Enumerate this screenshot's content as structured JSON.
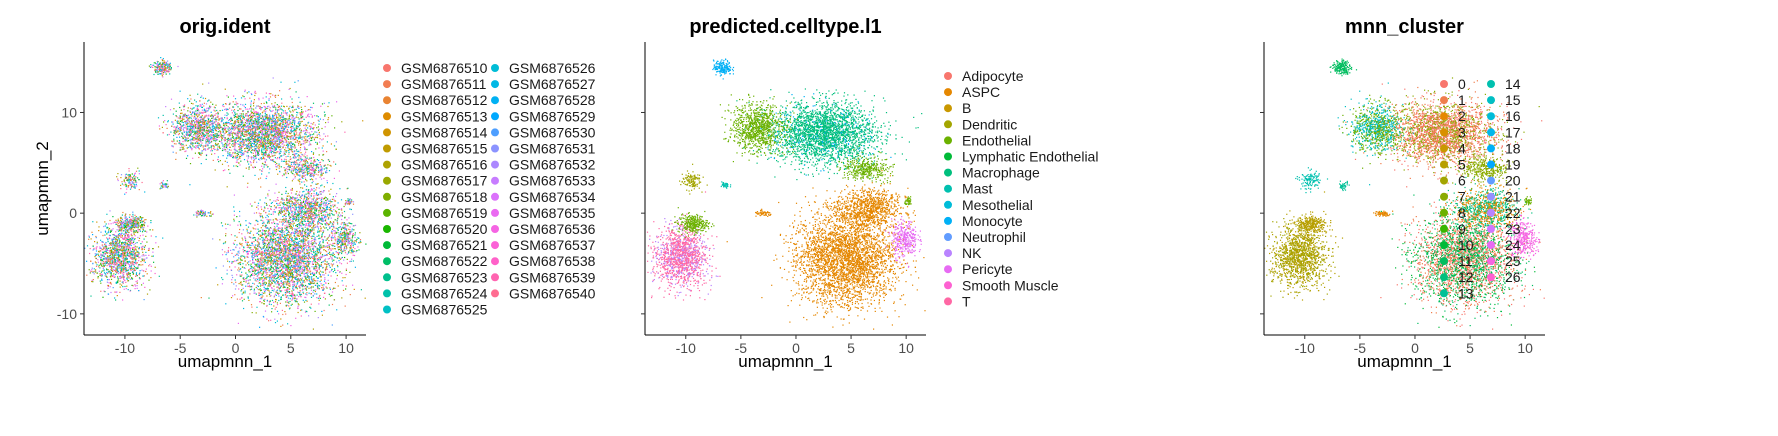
{
  "chart_data": [
    {
      "type": "scatter",
      "title": "orig.ident",
      "xlabel": "umapmnn_1",
      "ylabel": "umapmnn_2",
      "xlim": [
        -13.7,
        11.8
      ],
      "ylim": [
        -12.1,
        17.0
      ],
      "x_ticks": [
        -10,
        -5,
        0,
        5,
        10
      ],
      "y_ticks": [
        -10,
        0,
        10
      ],
      "grid": false,
      "legend_position": "right",
      "legend_columns": 2,
      "legend": [
        "GSM6876510",
        "GSM6876511",
        "GSM6876512",
        "GSM6876513",
        "GSM6876514",
        "GSM6876515",
        "GSM6876516",
        "GSM6876517",
        "GSM6876518",
        "GSM6876519",
        "GSM6876520",
        "GSM6876521",
        "GSM6876522",
        "GSM6876523",
        "GSM6876524",
        "GSM6876525",
        "GSM6876526",
        "GSM6876527",
        "GSM6876528",
        "GSM6876529",
        "GSM6876530",
        "GSM6876531",
        "GSM6876532",
        "GSM6876533",
        "GSM6876534",
        "GSM6876535",
        "GSM6876536",
        "GSM6876537",
        "GSM6876538",
        "GSM6876539",
        "GSM6876540"
      ],
      "colors": [
        "#F8766D",
        "#F27D52",
        "#E98332",
        "#DE8C00",
        "#D09400",
        "#C09B00",
        "#AEA200",
        "#99A800",
        "#7FAE00",
        "#5BB300",
        "#1AB600",
        "#00BA38",
        "#00BE67",
        "#00C08D",
        "#00C1AA",
        "#00C0C4",
        "#00BCD6",
        "#00B8E5",
        "#00B1F3",
        "#00A9FF",
        "#4D9EFF",
        "#8B93FF",
        "#AC88FF",
        "#C77CFF",
        "#DB72FB",
        "#EA6AF1",
        "#F564E3",
        "#FB61D7",
        "#FF61C9",
        "#FF64B0",
        "#FF6C91"
      ],
      "mix": "uniform"
    },
    {
      "type": "scatter",
      "title": "predicted.celltype.l1",
      "xlabel": "umapmnn_1",
      "ylabel": "umapmnn_2",
      "xlim": [
        -13.7,
        11.8
      ],
      "ylim": [
        -12.1,
        17.0
      ],
      "x_ticks": [
        -10,
        -5,
        0,
        5,
        10
      ],
      "y_ticks": [
        -10,
        0,
        10
      ],
      "grid": false,
      "legend_position": "right",
      "legend_columns": 1,
      "legend": [
        "Adipocyte",
        "ASPC",
        "B",
        "Dendritic",
        "Endothelial",
        "Lymphatic Endothelial",
        "Macrophage",
        "Mast",
        "Mesothelial",
        "Monocyte",
        "Neutrophil",
        "NK",
        "Pericyte",
        "Smooth Muscle",
        "T"
      ],
      "colors": [
        "#F8766D",
        "#E58700",
        "#C99800",
        "#A3A500",
        "#6BB100",
        "#00BA38",
        "#00BF7D",
        "#00C0AF",
        "#00BCD8",
        "#00B0F6",
        "#619CFF",
        "#B983FF",
        "#E76BF3",
        "#FD61D1",
        "#FF67A4"
      ],
      "mix": "celltype"
    },
    {
      "type": "scatter",
      "title": "mnn_cluster",
      "xlabel": "umapmnn_1",
      "ylabel": "umapmnn_2",
      "xlim": [
        -13.7,
        11.8
      ],
      "ylim": [
        -12.1,
        17.0
      ],
      "x_ticks": [
        -10,
        -5,
        0,
        5,
        10
      ],
      "y_ticks": [
        -10,
        0,
        10
      ],
      "grid": false,
      "legend_position": "right",
      "legend_columns": 2,
      "legend": [
        "0",
        "1",
        "2",
        "3",
        "4",
        "5",
        "6",
        "7",
        "8",
        "9",
        "10",
        "11",
        "12",
        "13",
        "14",
        "15",
        "16",
        "17",
        "18",
        "19",
        "20",
        "21",
        "22",
        "23",
        "24",
        "25",
        "26"
      ],
      "colors": [
        "#F8766D",
        "#F07E4D",
        "#E58700",
        "#D89000",
        "#C99800",
        "#B79F00",
        "#A3A500",
        "#8BAB00",
        "#6BB100",
        "#39B600",
        "#00BA38",
        "#00BD5F",
        "#00BF7D",
        "#00C097",
        "#00C0AF",
        "#00BFC4",
        "#00BCD8",
        "#00B6EB",
        "#00B0F6",
        "#00A8FF",
        "#619CFF",
        "#9590FF",
        "#B983FF",
        "#D277FF",
        "#E76BF3",
        "#F564E3",
        "#FD61D1"
      ],
      "mix": "cluster"
    }
  ]
}
